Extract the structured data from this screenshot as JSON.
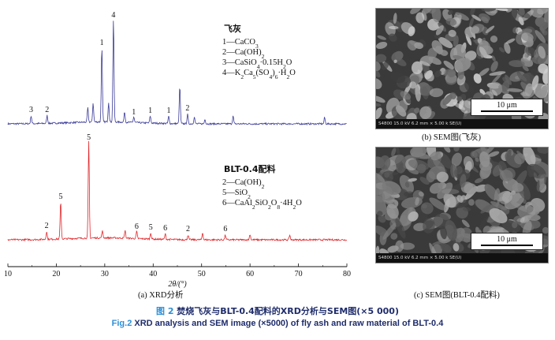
{
  "chart_data": {
    "type": "line",
    "xlabel": "2θ/(°)",
    "xlim": [
      10,
      80
    ],
    "xticks": [
      "10",
      "20",
      "30",
      "40",
      "50",
      "60",
      "70",
      "80"
    ],
    "series": [
      {
        "name": "飞灰",
        "color": "#3b3b9a",
        "peaks": [
          {
            "x": 14.8,
            "h": 10,
            "label": "3"
          },
          {
            "x": 18.1,
            "h": 10,
            "label": "2"
          },
          {
            "x": 26.5,
            "h": 18,
            "label": ""
          },
          {
            "x": 27.6,
            "h": 24,
            "label": ""
          },
          {
            "x": 29.4,
            "h": 95,
            "label": "1"
          },
          {
            "x": 30.8,
            "h": 25,
            "label": ""
          },
          {
            "x": 31.8,
            "h": 130,
            "label": "4"
          },
          {
            "x": 34.1,
            "h": 13,
            "label": ""
          },
          {
            "x": 36.0,
            "h": 7,
            "label": "1"
          },
          {
            "x": 39.4,
            "h": 9,
            "label": "1"
          },
          {
            "x": 43.2,
            "h": 9,
            "label": "1"
          },
          {
            "x": 45.5,
            "h": 47,
            "label": ""
          },
          {
            "x": 47.1,
            "h": 12,
            "label": "2"
          },
          {
            "x": 48.5,
            "h": 9,
            "label": ""
          },
          {
            "x": 50.7,
            "h": 6,
            "label": ""
          },
          {
            "x": 56.5,
            "h": 10,
            "label": ""
          },
          {
            "x": 75.4,
            "h": 8,
            "label": ""
          }
        ]
      },
      {
        "name": "BLT-0.4配料",
        "color": "#e0262a",
        "peaks": [
          {
            "x": 18.0,
            "h": 10,
            "label": "2"
          },
          {
            "x": 20.9,
            "h": 47,
            "label": "5"
          },
          {
            "x": 26.7,
            "h": 122,
            "label": "5"
          },
          {
            "x": 29.5,
            "h": 9,
            "label": ""
          },
          {
            "x": 34.2,
            "h": 10,
            "label": ""
          },
          {
            "x": 36.6,
            "h": 9,
            "label": "6"
          },
          {
            "x": 39.5,
            "h": 8,
            "label": "5"
          },
          {
            "x": 42.5,
            "h": 7,
            "label": "6"
          },
          {
            "x": 47.2,
            "h": 6,
            "label": "2"
          },
          {
            "x": 50.2,
            "h": 9,
            "label": ""
          },
          {
            "x": 54.9,
            "h": 6,
            "label": "6"
          },
          {
            "x": 60.0,
            "h": 7,
            "label": ""
          },
          {
            "x": 68.2,
            "h": 6,
            "label": ""
          }
        ]
      }
    ],
    "legends": [
      {
        "title": "飞灰",
        "entries": [
          "1—CaCO3",
          "2—Ca(OH)2",
          "3—CaSiO4·0.15H2O",
          "4—K2Ca5(SO4)6·H2O"
        ]
      },
      {
        "title": "BLT-0.4配料",
        "entries": [
          "2—Ca(OH)2",
          "5—SiO2",
          "6—CaAl2SiO2O8·4H2O"
        ]
      }
    ]
  },
  "panel_a_caption": "(a)  XRD分析",
  "sem_b": {
    "info": "S4800 15.0 kV 6.2 mm × 5.00 k SE(U)",
    "scale": "10 μm",
    "caption": "(b)  SEM图(飞灰)"
  },
  "sem_c": {
    "info": "S4800 15.0 kV 6.2 mm × 5.00 k SE(U)",
    "scale": "10 μm",
    "caption": "(c)  SEM图(BLT-0.4配料)"
  },
  "figure": {
    "cn_tag": "图 2",
    "cn_text": " 焚烧飞灰与BLT-0.4配料的XRD分析与SEM图(×5 000)",
    "en_tag": "Fig.2",
    "en_text": " XRD analysis and SEM image (×5000) of fly ash and raw material of BLT-0.4"
  }
}
